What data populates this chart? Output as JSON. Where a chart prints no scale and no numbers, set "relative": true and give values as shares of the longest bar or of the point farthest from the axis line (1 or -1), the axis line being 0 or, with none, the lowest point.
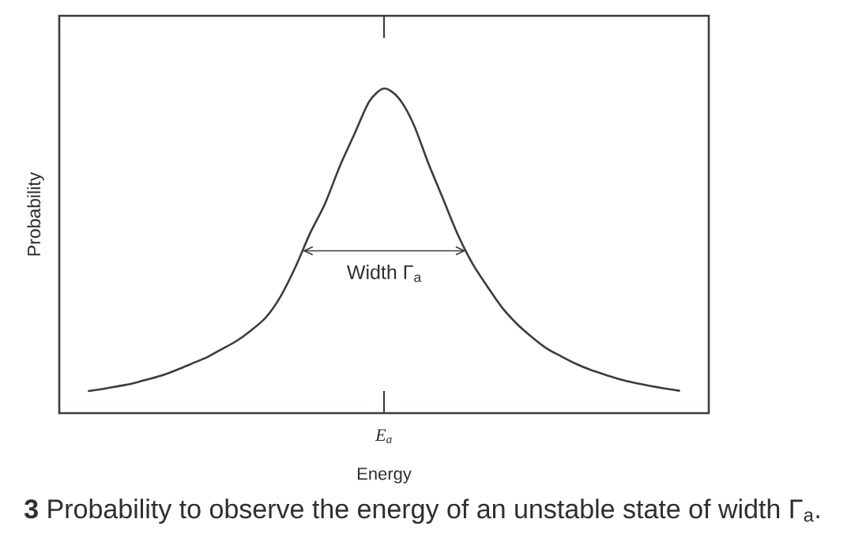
{
  "chart_data": {
    "type": "line",
    "xlabel": "Energy",
    "ylabel": "Probability",
    "relative": true,
    "color": "#3b3b45",
    "categories": [
      null,
      null,
      null,
      null,
      null,
      null,
      null,
      null,
      null,
      null,
      null,
      null,
      null,
      null,
      null,
      null,
      null,
      null,
      null,
      null,
      null,
      null,
      null,
      null,
      null,
      null,
      null,
      null,
      null,
      null,
      null,
      null,
      null,
      null,
      null,
      null,
      null,
      null,
      null,
      null,
      null
    ],
    "values": [
      0.068,
      0.075,
      0.083,
      0.092,
      0.104,
      0.117,
      0.134,
      0.153,
      0.172,
      0.197,
      0.222,
      0.255,
      0.295,
      0.36,
      0.45,
      0.555,
      0.645,
      0.76,
      0.86,
      0.96,
      1,
      0.97,
      0.89,
      0.77,
      0.66,
      0.55,
      0.46,
      0.39,
      0.325,
      0.275,
      0.235,
      0.2,
      0.175,
      0.152,
      0.133,
      0.118,
      0.104,
      0.093,
      0.084,
      0.076,
      0.069
    ],
    "annotations": [
      "**3** Probability to observe the energy of an unstable state of width Γ$_{a}$.",
      "Width Γ$_{a}$",
      "E$_{a}$"
    ]
  }
}
